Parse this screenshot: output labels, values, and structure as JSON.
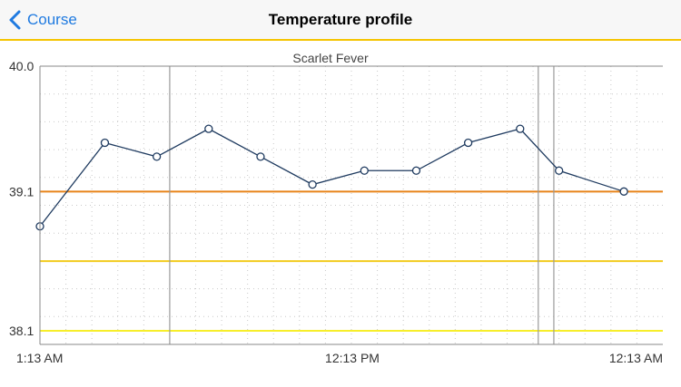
{
  "navbar": {
    "back_label": "Course",
    "title": "Temperature profile"
  },
  "colors": {
    "accent": "#1f7ae0",
    "navbar_border": "#f5c400",
    "series_line": "#1e3a5f",
    "threshold_high": "#e8841a",
    "threshold_mid": "#f2cb1d",
    "threshold_low": "#f7ee2a",
    "marker_line": "#9a9a9a"
  },
  "chart_data": {
    "type": "line",
    "title": "Scarlet Fever",
    "xlabel": "",
    "ylabel": "",
    "ylim": [
      38.0,
      40.0
    ],
    "y_ticks": [
      "40.0",
      "39.1",
      "38.1"
    ],
    "x_ticks": [
      "1:13 AM",
      "12:13 PM",
      "12:13 AM"
    ],
    "x_hours": [
      0,
      2.5,
      4.5,
      6.5,
      8.5,
      10.5,
      12.5,
      14.5,
      16.5,
      18.5,
      20,
      22.5
    ],
    "values": [
      38.85,
      39.45,
      39.35,
      39.55,
      39.35,
      39.15,
      39.25,
      39.25,
      39.45,
      39.55,
      39.25,
      39.1
    ],
    "thresholds": [
      39.1,
      38.6,
      38.1
    ],
    "marker_hours": [
      5,
      19.2,
      19.8
    ],
    "grid": true
  }
}
